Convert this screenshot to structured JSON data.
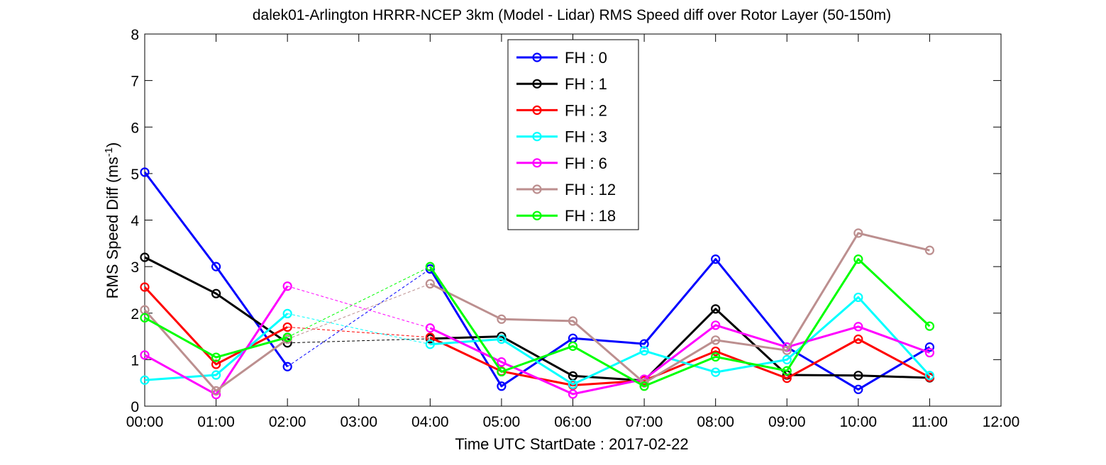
{
  "chart_data": {
    "type": "line",
    "title": "dalek01-Arlington HRRR-NCEP 3km (Model - Lidar) RMS Speed diff over Rotor Layer (50-150m)",
    "xlabel": "Time UTC    StartDate : 2017-02-22",
    "ylabel_main": "RMS Speed Diff (ms",
    "ylabel_sup": "-1",
    "ylabel_end": ")",
    "xlim": [
      0,
      12
    ],
    "ylim": [
      0,
      8
    ],
    "x_ticks": [
      0,
      1,
      2,
      3,
      4,
      5,
      6,
      7,
      8,
      9,
      10,
      11,
      12
    ],
    "x_tick_labels": [
      "00:00",
      "01:00",
      "02:00",
      "03:00",
      "04:00",
      "05:00",
      "06:00",
      "07:00",
      "08:00",
      "09:00",
      "10:00",
      "11:00",
      "12:00"
    ],
    "y_ticks": [
      0,
      1,
      2,
      3,
      4,
      5,
      6,
      7,
      8
    ],
    "y_tick_labels": [
      "0",
      "1",
      "2",
      "3",
      "4",
      "5",
      "6",
      "7",
      "8"
    ],
    "legend_position": "top-center",
    "gap": [
      2,
      4
    ],
    "x": [
      0,
      1,
      2,
      4,
      5,
      6,
      7,
      8,
      9,
      10,
      11
    ],
    "series": [
      {
        "name": "FH : 0",
        "color": "#0000ff",
        "values": [
          5.03,
          3.0,
          0.85,
          2.95,
          0.43,
          1.46,
          1.34,
          3.16,
          1.27,
          0.36,
          1.27
        ]
      },
      {
        "name": "FH : 1",
        "color": "#000000",
        "values": [
          3.2,
          2.42,
          1.36,
          1.45,
          1.5,
          0.65,
          0.55,
          2.09,
          0.67,
          0.66,
          0.61
        ]
      },
      {
        "name": "FH : 2",
        "color": "#ff0000",
        "values": [
          2.56,
          0.9,
          1.7,
          1.48,
          0.75,
          0.45,
          0.55,
          1.18,
          0.6,
          1.44,
          0.62
        ]
      },
      {
        "name": "FH : 3",
        "color": "#00ffff",
        "values": [
          0.56,
          0.67,
          1.99,
          1.33,
          1.44,
          0.47,
          1.19,
          0.73,
          1.0,
          2.34,
          0.66
        ]
      },
      {
        "name": "FH : 6",
        "color": "#ff00ff",
        "values": [
          1.1,
          0.25,
          2.58,
          1.68,
          0.95,
          0.26,
          0.58,
          1.74,
          1.27,
          1.71,
          1.15
        ]
      },
      {
        "name": "FH : 12",
        "color": "#bc8f8f",
        "values": [
          2.07,
          0.33,
          1.44,
          2.63,
          1.87,
          1.83,
          0.5,
          1.42,
          1.2,
          3.72,
          3.35
        ]
      },
      {
        "name": "FH : 18",
        "color": "#00ff00",
        "values": [
          1.9,
          1.05,
          1.48,
          3.0,
          0.74,
          1.29,
          0.43,
          1.06,
          0.76,
          3.16,
          1.72
        ]
      }
    ]
  }
}
